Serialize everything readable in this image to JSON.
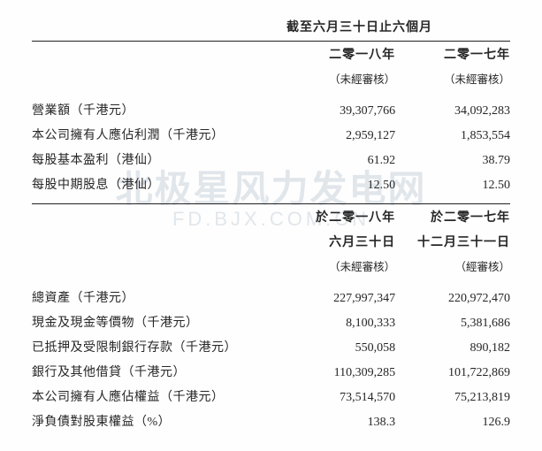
{
  "watermark": {
    "main": "北极星风力发电网",
    "sub": "FD.BJX.COM.CN"
  },
  "section1": {
    "super_header": "截至六月三十日止六個月",
    "col1_year": "二零一八年",
    "col2_year": "二零一七年",
    "col1_note": "（未經審核）",
    "col2_note": "（未經審核）",
    "rows": [
      {
        "label": "營業額（千港元）",
        "v1": "39,307,766",
        "v2": "34,092,283"
      },
      {
        "label": "本公司擁有人應佔利潤（千港元）",
        "v1": "2,959,127",
        "v2": "1,853,554"
      },
      {
        "label": "每股基本盈利（港仙）",
        "v1": "61.92",
        "v2": "38.79"
      },
      {
        "label": "每股中期股息（港仙）",
        "v1": "12.50",
        "v2": "12.50"
      }
    ]
  },
  "section2": {
    "col1_line1": "於二零一八年",
    "col1_line2": "六月三十日",
    "col1_note": "（未經審核）",
    "col2_line1": "於二零一七年",
    "col2_line2": "十二月三十一日",
    "col2_note": "（經審核）",
    "rows": [
      {
        "label": "總資產（千港元）",
        "v1": "227,997,347",
        "v2": "220,972,470"
      },
      {
        "label": "現金及現金等價物（千港元）",
        "v1": "8,100,333",
        "v2": "5,381,686"
      },
      {
        "label": "已抵押及受限制銀行存款（千港元）",
        "v1": "550,058",
        "v2": "890,182"
      },
      {
        "label": "銀行及其他借貸（千港元）",
        "v1": "110,309,285",
        "v2": "101,722,869"
      },
      {
        "label": "本公司擁有人應佔權益（千港元）",
        "v1": "73,514,570",
        "v2": "75,213,819"
      },
      {
        "label": "淨負債對股東權益（%）",
        "v1": "138.3",
        "v2": "126.9"
      }
    ]
  }
}
